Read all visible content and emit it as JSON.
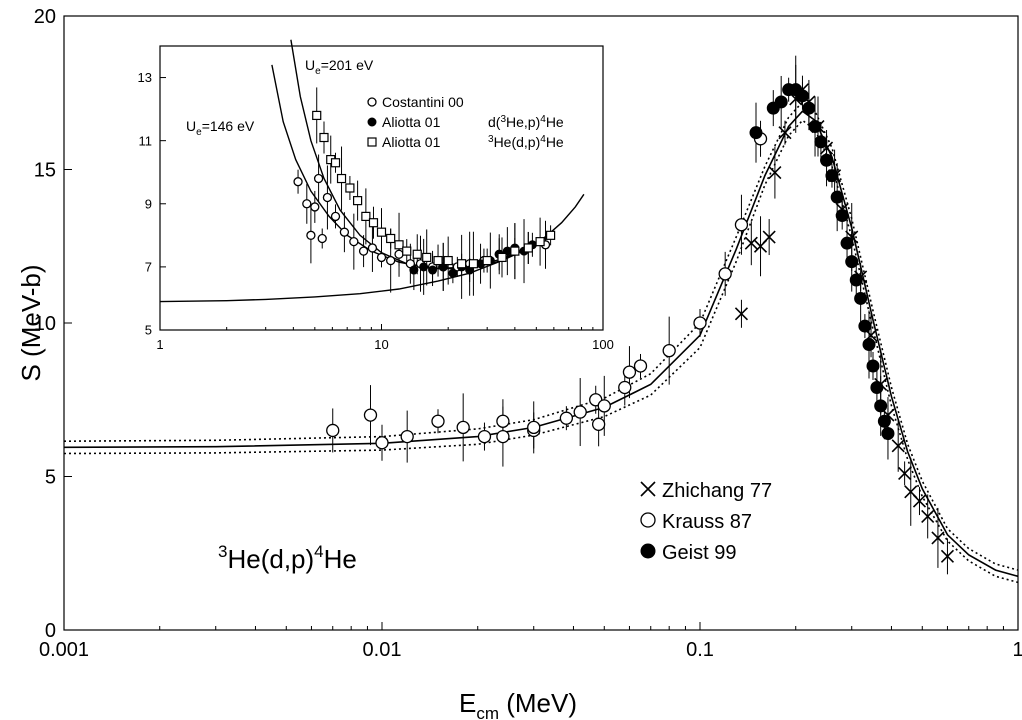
{
  "chart_data": [
    {
      "panel": "main",
      "type": "scatter",
      "xlabel": "E",
      "xlabel_sub": "cm",
      "xlabel_unit": " (MeV)",
      "ylabel": "S (MeV-b)",
      "xscale": "log",
      "xlim": [
        0.001,
        1
      ],
      "ylim": [
        0,
        20
      ],
      "xticks": [
        0.001,
        0.01,
        0.1,
        1
      ],
      "xtick_labels": [
        "0.001",
        "0.01",
        "0.1",
        "1"
      ],
      "yticks": [
        0,
        5,
        10,
        15,
        20
      ],
      "ytick_labels": [
        "0",
        "5",
        "10",
        "15",
        "20"
      ],
      "grid": false,
      "legend_position": "bottom-right",
      "annotation": {
        "pre": "",
        "sup1": "3",
        "mid": "He(d,p)",
        "sup2": "4",
        "post": "He"
      },
      "series": [
        {
          "name": "Zhichang 77",
          "marker": "x",
          "points": [
            [
              0.135,
              10.3
            ],
            [
              0.145,
              12.6
            ],
            [
              0.155,
              12.5
            ],
            [
              0.165,
              12.8
            ],
            [
              0.172,
              14.9
            ],
            [
              0.185,
              16.2
            ],
            [
              0.2,
              17.3
            ],
            [
              0.21,
              17.6
            ],
            [
              0.22,
              17.2
            ],
            [
              0.235,
              16.4
            ],
            [
              0.25,
              15.7
            ],
            [
              0.265,
              14.8
            ],
            [
              0.28,
              13.7
            ],
            [
              0.3,
              12.8
            ],
            [
              0.32,
              11.5
            ],
            [
              0.345,
              9.6
            ],
            [
              0.37,
              8.0
            ],
            [
              0.39,
              7.0
            ],
            [
              0.42,
              6.0
            ],
            [
              0.44,
              5.1
            ],
            [
              0.46,
              4.5
            ],
            [
              0.49,
              4.2
            ],
            [
              0.52,
              3.7
            ],
            [
              0.56,
              3.0
            ],
            [
              0.6,
              2.4
            ]
          ]
        },
        {
          "name": "Krauss 87",
          "marker": "open-circle",
          "points": [
            [
              0.007,
              6.5
            ],
            [
              0.0092,
              7.0
            ],
            [
              0.01,
              6.1
            ],
            [
              0.012,
              6.3
            ],
            [
              0.015,
              6.8
            ],
            [
              0.018,
              6.6
            ],
            [
              0.021,
              6.3
            ],
            [
              0.024,
              6.8
            ],
            [
              0.024,
              6.3
            ],
            [
              0.03,
              6.5
            ],
            [
              0.03,
              6.6
            ],
            [
              0.038,
              6.9
            ],
            [
              0.042,
              7.1
            ],
            [
              0.047,
              7.5
            ],
            [
              0.048,
              6.7
            ],
            [
              0.05,
              7.3
            ],
            [
              0.058,
              7.9
            ],
            [
              0.06,
              8.4
            ],
            [
              0.065,
              8.6
            ],
            [
              0.08,
              9.1
            ],
            [
              0.1,
              10.0
            ],
            [
              0.12,
              11.6
            ],
            [
              0.135,
              13.2
            ],
            [
              0.155,
              16.0
            ]
          ]
        },
        {
          "name": "Geist 99",
          "marker": "filled-circle",
          "points": [
            [
              0.15,
              16.2
            ],
            [
              0.17,
              17.0
            ],
            [
              0.18,
              17.2
            ],
            [
              0.19,
              17.6
            ],
            [
              0.2,
              17.6
            ],
            [
              0.21,
              17.4
            ],
            [
              0.22,
              17.0
            ],
            [
              0.23,
              16.4
            ],
            [
              0.24,
              15.9
            ],
            [
              0.25,
              15.3
            ],
            [
              0.26,
              14.8
            ],
            [
              0.27,
              14.1
            ],
            [
              0.28,
              13.5
            ],
            [
              0.29,
              12.6
            ],
            [
              0.3,
              12.0
            ],
            [
              0.31,
              11.4
            ],
            [
              0.32,
              10.8
            ],
            [
              0.33,
              9.9
            ],
            [
              0.34,
              9.3
            ],
            [
              0.35,
              8.6
            ],
            [
              0.36,
              7.9
            ],
            [
              0.37,
              7.3
            ],
            [
              0.38,
              6.8
            ],
            [
              0.39,
              6.4
            ]
          ]
        }
      ],
      "curves": [
        {
          "style": "solid",
          "points": [
            [
              0.001,
              5.95
            ],
            [
              0.003,
              5.97
            ],
            [
              0.01,
              6.08
            ],
            [
              0.02,
              6.3
            ],
            [
              0.03,
              6.6
            ],
            [
              0.05,
              7.25
            ],
            [
              0.07,
              8.0
            ],
            [
              0.1,
              9.6
            ],
            [
              0.13,
              12.4
            ],
            [
              0.16,
              14.8
            ],
            [
              0.19,
              16.4
            ],
            [
              0.21,
              16.9
            ],
            [
              0.23,
              16.6
            ],
            [
              0.26,
              15.4
            ],
            [
              0.3,
              13.1
            ],
            [
              0.35,
              10.1
            ],
            [
              0.4,
              7.6
            ],
            [
              0.45,
              5.8
            ],
            [
              0.5,
              4.6
            ],
            [
              0.6,
              3.1
            ],
            [
              0.7,
              2.45
            ],
            [
              0.85,
              1.95
            ],
            [
              1.0,
              1.75
            ]
          ]
        },
        {
          "style": "dotted",
          "points": [
            [
              0.001,
              6.15
            ],
            [
              0.003,
              6.18
            ],
            [
              0.01,
              6.3
            ],
            [
              0.02,
              6.55
            ],
            [
              0.03,
              6.85
            ],
            [
              0.05,
              7.55
            ],
            [
              0.07,
              8.35
            ],
            [
              0.1,
              10.0
            ],
            [
              0.13,
              12.8
            ],
            [
              0.16,
              15.1
            ],
            [
              0.19,
              16.7
            ],
            [
              0.21,
              17.2
            ],
            [
              0.23,
              16.9
            ],
            [
              0.26,
              15.7
            ],
            [
              0.3,
              13.4
            ],
            [
              0.35,
              10.4
            ],
            [
              0.4,
              7.9
            ],
            [
              0.45,
              6.05
            ],
            [
              0.5,
              4.85
            ],
            [
              0.6,
              3.3
            ],
            [
              0.7,
              2.65
            ],
            [
              0.85,
              2.15
            ],
            [
              1.0,
              1.95
            ]
          ]
        },
        {
          "style": "dotted",
          "points": [
            [
              0.001,
              5.75
            ],
            [
              0.003,
              5.77
            ],
            [
              0.01,
              5.86
            ],
            [
              0.02,
              6.05
            ],
            [
              0.03,
              6.35
            ],
            [
              0.05,
              6.95
            ],
            [
              0.07,
              7.65
            ],
            [
              0.1,
              9.2
            ],
            [
              0.13,
              12.0
            ],
            [
              0.16,
              14.5
            ],
            [
              0.19,
              16.1
            ],
            [
              0.21,
              16.6
            ],
            [
              0.23,
              16.3
            ],
            [
              0.26,
              15.1
            ],
            [
              0.3,
              12.8
            ],
            [
              0.35,
              9.8
            ],
            [
              0.4,
              7.3
            ],
            [
              0.45,
              5.55
            ],
            [
              0.5,
              4.35
            ],
            [
              0.6,
              2.9
            ],
            [
              0.7,
              2.25
            ],
            [
              0.85,
              1.75
            ],
            [
              1.0,
              1.55
            ]
          ]
        }
      ]
    },
    {
      "panel": "inset",
      "type": "scatter",
      "xscale": "log",
      "xlim": [
        1,
        100
      ],
      "ylim": [
        5,
        14
      ],
      "xticks": [
        1,
        10,
        100
      ],
      "xtick_labels": [
        "1",
        "10",
        "100"
      ],
      "yticks": [
        5,
        7,
        9,
        11,
        13
      ],
      "ytick_labels": [
        "5",
        "7",
        "9",
        "11",
        "13"
      ],
      "legend_position": "top-right",
      "curve_labels": [
        {
          "pre": "U",
          "sub": "e",
          "post": "=201 eV"
        },
        {
          "pre": "U",
          "sub": "e",
          "post": "=146 eV"
        }
      ],
      "series": [
        {
          "name": "Costantini 00",
          "suffix_pre": "",
          "suffix_sup1": "",
          "suffix_mid": "",
          "suffix_sup2": "",
          "suffix_post": "",
          "marker": "open-circle",
          "points": [
            [
              4.2,
              9.7
            ],
            [
              4.6,
              9.0
            ],
            [
              4.8,
              8.0
            ],
            [
              5.0,
              8.9
            ],
            [
              5.2,
              9.8
            ],
            [
              5.4,
              7.9
            ],
            [
              5.7,
              9.2
            ],
            [
              6.2,
              8.6
            ],
            [
              6.8,
              8.1
            ],
            [
              7.5,
              7.8
            ],
            [
              8.3,
              7.5
            ],
            [
              9.1,
              7.6
            ],
            [
              10,
              7.3
            ],
            [
              11,
              7.2
            ],
            [
              12,
              7.4
            ],
            [
              13.5,
              7.1
            ],
            [
              15,
              7.1
            ],
            [
              17,
              7.0
            ],
            [
              19,
              7.0
            ],
            [
              22,
              7.0
            ],
            [
              25,
              7.1
            ],
            [
              29,
              7.2
            ],
            [
              34,
              7.4
            ],
            [
              40,
              7.5
            ],
            [
              46,
              7.6
            ],
            [
              55,
              7.7
            ]
          ]
        },
        {
          "name": "Aliotta 01",
          "suffix_pre": "d(",
          "suffix_sup1": "3",
          "suffix_mid": "He,p)",
          "suffix_sup2": "4",
          "suffix_post": "He",
          "marker": "filled-circle",
          "points": [
            [
              14,
              6.9
            ],
            [
              15.5,
              7.0
            ],
            [
              17,
              6.9
            ],
            [
              19,
              7.0
            ],
            [
              21,
              6.8
            ],
            [
              23,
              7.0
            ],
            [
              25,
              6.9
            ],
            [
              28,
              7.1
            ],
            [
              31,
              7.2
            ],
            [
              34,
              7.4
            ],
            [
              37,
              7.5
            ],
            [
              40,
              7.6
            ],
            [
              44,
              7.5
            ],
            [
              48,
              7.7
            ]
          ]
        },
        {
          "name": "Aliotta 01",
          "suffix_pre": "",
          "suffix_sup1": "3",
          "suffix_mid": "He(d,p)",
          "suffix_sup2": "4",
          "suffix_post": "He",
          "marker": "open-square",
          "points": [
            [
              5.1,
              11.8
            ],
            [
              5.5,
              11.1
            ],
            [
              5.9,
              10.4
            ],
            [
              6.2,
              10.3
            ],
            [
              6.6,
              9.8
            ],
            [
              7.2,
              9.5
            ],
            [
              7.8,
              9.1
            ],
            [
              8.5,
              8.6
            ],
            [
              9.2,
              8.4
            ],
            [
              10,
              8.1
            ],
            [
              11,
              7.9
            ],
            [
              12,
              7.7
            ],
            [
              13,
              7.5
            ],
            [
              14.5,
              7.4
            ],
            [
              16,
              7.3
            ],
            [
              18,
              7.2
            ],
            [
              20,
              7.2
            ],
            [
              23,
              7.1
            ],
            [
              26,
              7.1
            ],
            [
              30,
              7.2
            ],
            [
              35,
              7.3
            ],
            [
              40,
              7.5
            ],
            [
              46,
              7.6
            ],
            [
              52,
              7.8
            ],
            [
              58,
              8.0
            ]
          ]
        }
      ],
      "curves": [
        {
          "style": "solid",
          "points": [
            [
              1,
              5.9
            ],
            [
              2,
              5.93
            ],
            [
              3,
              5.97
            ],
            [
              5,
              6.05
            ],
            [
              8,
              6.15
            ],
            [
              12,
              6.3
            ],
            [
              18,
              6.55
            ],
            [
              25,
              6.8
            ],
            [
              35,
              7.2
            ],
            [
              45,
              7.6
            ],
            [
              55,
              7.95
            ],
            [
              65,
              8.4
            ],
            [
              75,
              8.9
            ],
            [
              82,
              9.3
            ]
          ]
        },
        {
          "style": "solid",
          "points": [
            [
              3.9,
              14.2
            ],
            [
              4.3,
              12.4
            ],
            [
              4.8,
              11.0
            ],
            [
              5.5,
              9.8
            ],
            [
              6.5,
              8.8
            ],
            [
              8,
              8.0
            ],
            [
              10,
              7.45
            ],
            [
              13,
              7.1
            ],
            [
              18,
              6.95
            ],
            [
              25,
              7.0
            ],
            [
              35,
              7.25
            ],
            [
              45,
              7.6
            ],
            [
              55,
              7.95
            ]
          ]
        },
        {
          "style": "solid",
          "points": [
            [
              3.2,
              13.4
            ],
            [
              3.6,
              11.6
            ],
            [
              4.1,
              10.4
            ],
            [
              4.8,
              9.4
            ],
            [
              5.8,
              8.6
            ],
            [
              7,
              8.0
            ],
            [
              9,
              7.5
            ],
            [
              12,
              7.15
            ],
            [
              17,
              6.95
            ],
            [
              25,
              6.95
            ],
            [
              35,
              7.2
            ],
            [
              45,
              7.55
            ],
            [
              55,
              7.9
            ]
          ]
        }
      ]
    }
  ]
}
